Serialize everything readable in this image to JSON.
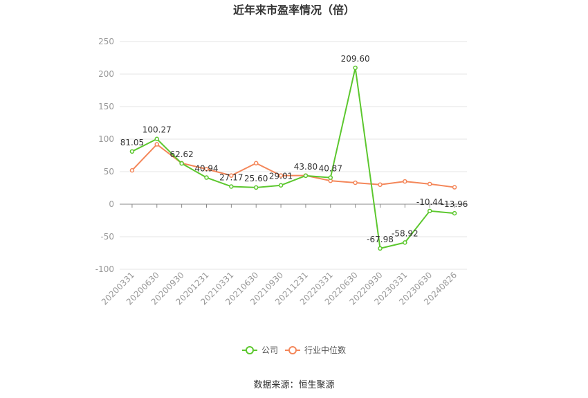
{
  "chart_data": {
    "type": "line",
    "title": "近年来市盈率情况（倍）",
    "categories": [
      "20200331",
      "20200630",
      "20200930",
      "20201231",
      "20210331",
      "20210630",
      "20210930",
      "20211231",
      "20220331",
      "20220630",
      "20220930",
      "20230331",
      "20230630",
      "20240826"
    ],
    "series": [
      {
        "name": "公司",
        "color": "#5cc72e",
        "values": [
          81.05,
          100.27,
          62.62,
          40.94,
          27.17,
          25.6,
          29.01,
          43.8,
          40.87,
          209.6,
          -67.98,
          -58.92,
          -10.44,
          -13.96
        ],
        "labels": [
          "81.05",
          "100.27",
          "62.62",
          "40.94",
          "27.17",
          "25.60",
          "29.01",
          "43.80",
          "40.87",
          "209.60",
          "-67.98",
          "-58.92",
          "-10.44",
          "-13.96"
        ]
      },
      {
        "name": "行业中位数",
        "color": "#f4875a",
        "values": [
          52,
          92,
          63,
          54,
          44,
          63,
          44,
          44,
          36,
          33,
          30,
          35,
          31,
          26
        ]
      }
    ],
    "yticks": [
      250,
      200,
      150,
      100,
      50,
      0,
      -50,
      -100
    ],
    "ylim": [
      -100,
      250
    ],
    "grid": true,
    "legend_position": "bottom-center"
  },
  "source_text": "数据来源：恒生聚源"
}
